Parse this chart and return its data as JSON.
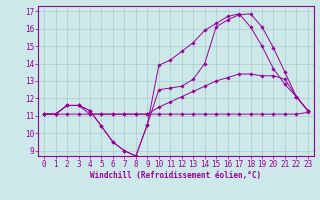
{
  "background_color": "#cce8e8",
  "grid_color": "#aacccc",
  "line_color": "#990099",
  "xlabel": "Windchill (Refroidissement éolien,°C)",
  "xlabel_fontsize": 5.5,
  "tick_fontsize": 5.5,
  "xlim": [
    -0.5,
    23.5
  ],
  "ylim": [
    8.7,
    17.3
  ],
  "yticks": [
    9,
    10,
    11,
    12,
    13,
    14,
    15,
    16,
    17
  ],
  "xticks": [
    0,
    1,
    2,
    3,
    4,
    5,
    6,
    7,
    8,
    9,
    10,
    11,
    12,
    13,
    14,
    15,
    16,
    17,
    18,
    19,
    20,
    21,
    22,
    23
  ],
  "series": [
    {
      "x": [
        0,
        1,
        2,
        3,
        4,
        5,
        6,
        7,
        8,
        9,
        10,
        11,
        12,
        13,
        14,
        15,
        16,
        17,
        18,
        19,
        20,
        21,
        22,
        23
      ],
      "y": [
        11.1,
        11.1,
        11.1,
        11.1,
        11.1,
        11.1,
        11.1,
        11.1,
        11.1,
        11.1,
        11.1,
        11.1,
        11.1,
        11.1,
        11.1,
        11.1,
        11.1,
        11.1,
        11.1,
        11.1,
        11.1,
        11.1,
        11.1,
        11.2
      ]
    },
    {
      "x": [
        0,
        1,
        2,
        3,
        4,
        5,
        6,
        7,
        8,
        9,
        10,
        11,
        12,
        13,
        14,
        15,
        16,
        17,
        18,
        19,
        20,
        21,
        22,
        23
      ],
      "y": [
        11.1,
        11.1,
        11.6,
        11.6,
        11.1,
        11.1,
        11.1,
        11.1,
        11.1,
        11.1,
        11.5,
        11.8,
        12.1,
        12.4,
        12.7,
        13.0,
        13.2,
        13.4,
        13.4,
        13.3,
        13.3,
        13.1,
        12.1,
        11.3
      ]
    },
    {
      "x": [
        0,
        1,
        2,
        3,
        4,
        5,
        6,
        7,
        8,
        9,
        10,
        11,
        12,
        13,
        14,
        15,
        16,
        17,
        18,
        19,
        20,
        21,
        22,
        23
      ],
      "y": [
        11.1,
        11.1,
        11.6,
        11.6,
        11.3,
        10.4,
        9.5,
        9.0,
        8.7,
        10.5,
        13.9,
        14.2,
        14.7,
        15.2,
        15.9,
        16.3,
        16.7,
        16.85,
        16.1,
        15.0,
        13.7,
        12.8,
        12.1,
        11.3
      ]
    },
    {
      "x": [
        0,
        1,
        2,
        3,
        4,
        5,
        6,
        7,
        8,
        9,
        10,
        11,
        12,
        13,
        14,
        15,
        16,
        17,
        18,
        19,
        20,
        21,
        22,
        23
      ],
      "y": [
        11.1,
        11.1,
        11.6,
        11.6,
        11.3,
        10.4,
        9.5,
        9.0,
        8.7,
        10.5,
        12.5,
        12.6,
        12.7,
        13.1,
        14.0,
        16.1,
        16.5,
        16.8,
        16.85,
        16.1,
        14.9,
        13.5,
        12.1,
        11.3
      ]
    }
  ]
}
